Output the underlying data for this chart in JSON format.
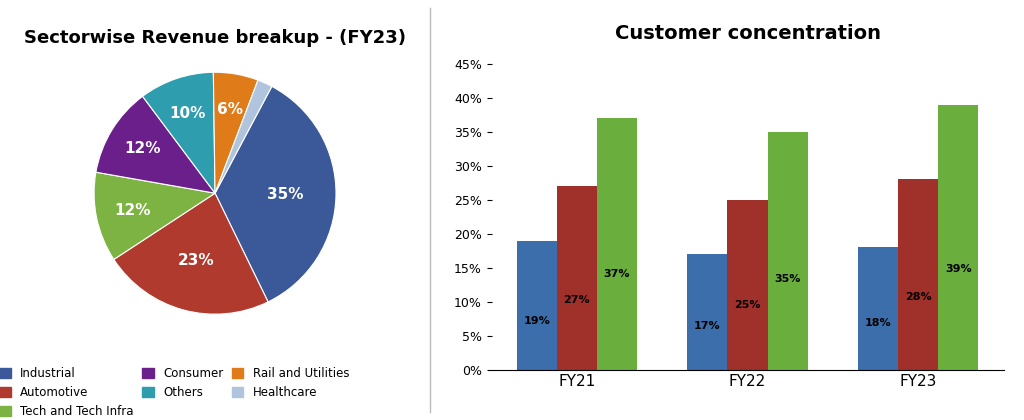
{
  "pie_title": "Sectorwise Revenue breakup - (FY23)",
  "pie_labels": [
    "Industrial",
    "Automotive",
    "Tech and Tech Infra",
    "Consumer",
    "Others",
    "Rail and Utilities",
    "Healthcare"
  ],
  "pie_values": [
    35,
    23,
    12,
    12,
    10,
    6,
    2
  ],
  "pie_colors": [
    "#3B5998",
    "#B03A2E",
    "#7CB342",
    "#6A1F8A",
    "#2E9DAE",
    "#E07B1A",
    "#B0C4DE"
  ],
  "pie_label_pcts": [
    "35%",
    "23%",
    "12%",
    "12%",
    "10%",
    "6%",
    ""
  ],
  "bar_title": "Customer concentration",
  "bar_categories": [
    "FY21",
    "FY22",
    "FY23"
  ],
  "bar_series": {
    "Top 5": [
      0.19,
      0.17,
      0.18
    ],
    "Top 10": [
      0.27,
      0.25,
      0.28
    ],
    "Top 20": [
      0.37,
      0.35,
      0.39
    ]
  },
  "bar_labels": {
    "Top 5": [
      "19%",
      "17%",
      "18%"
    ],
    "Top 10": [
      "27%",
      "25%",
      "28%"
    ],
    "Top 20": [
      "37%",
      "35%",
      "39%"
    ]
  },
  "bar_colors": {
    "Top 5": "#3B6EAA",
    "Top 10": "#A0302A",
    "Top 20": "#6AAF3D"
  },
  "bar_ylim": [
    0,
    0.47
  ],
  "bar_yticks": [
    0,
    0.05,
    0.1,
    0.15,
    0.2,
    0.25,
    0.3,
    0.35,
    0.4,
    0.45
  ],
  "bar_ytick_labels": [
    "0%",
    "5%",
    "10%",
    "15%",
    "20%",
    "25%",
    "30%",
    "35%",
    "40%",
    "45%"
  ],
  "pie_legend_order": [
    "Industrial",
    "Automotive",
    "Tech and Tech Infra",
    "Consumer",
    "Others",
    "Rail and Utilities",
    "Healthcare"
  ],
  "startangle": 62
}
